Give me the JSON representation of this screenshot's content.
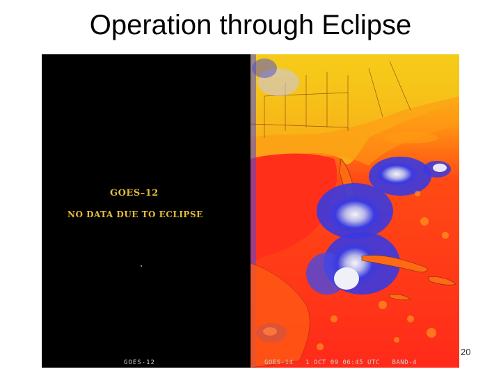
{
  "slide": {
    "title": "Operation through Eclipse",
    "page_number": "20"
  },
  "left_panel": {
    "satellite_label": "GOES–12",
    "message": "NO DATA DUE TO ECLIPSE",
    "footer": "GOES-12"
  },
  "right_panel": {
    "footer": "GOES-14   1 OCT 09 06:45 UTC   BAND-4"
  },
  "colors": {
    "label_gold": "#e3bd3c",
    "warm_red": "#ff2a1a",
    "orange": "#ff7a10",
    "yellow": "#f2e51a",
    "cloud_blue": "#3a3ae0",
    "cloud_white": "#e8e8f4"
  }
}
